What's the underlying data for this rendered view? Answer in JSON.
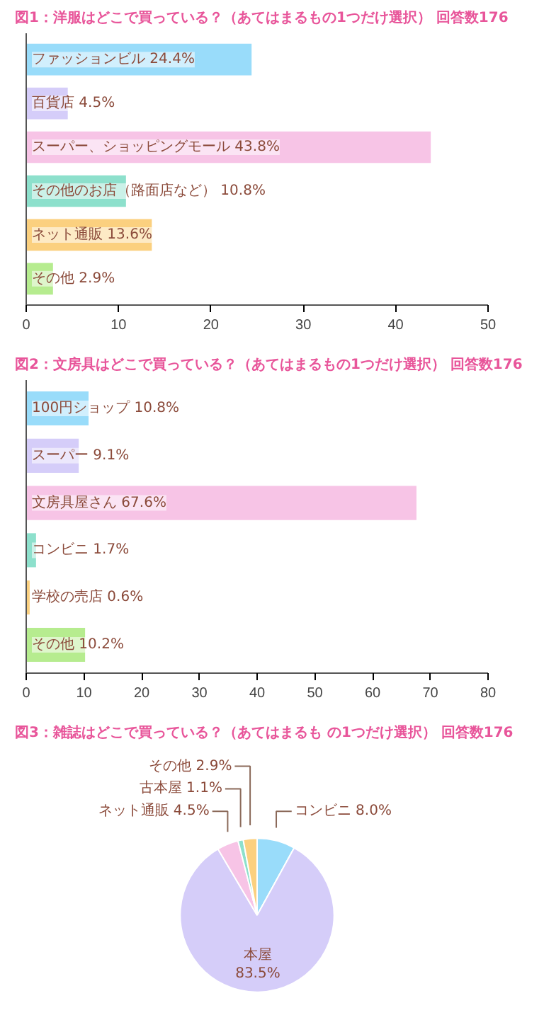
{
  "chart_data": [
    {
      "type": "bar",
      "orientation": "horizontal",
      "title": "図1：洋服はどこで買っている？（あてはまるもの1つだけ選択） 回答数176",
      "categories": [
        "ファッションビル",
        "百貨店",
        "スーパー、ショッピングモール",
        "その他のお店（路面店など）",
        "ネット通販",
        "その他"
      ],
      "values": [
        24.4,
        4.5,
        43.8,
        10.8,
        13.6,
        2.9
      ],
      "value_labels": [
        "24.4%",
        "4.5%",
        "43.8%",
        "10.8%",
        "13.6%",
        "2.9%"
      ],
      "colors": [
        "#99dcfa",
        "#d5cdf9",
        "#f7c4e6",
        "#8de0cc",
        "#fbd07f",
        "#b6ec8f"
      ],
      "xlim": [
        0,
        50
      ],
      "xticks": [
        0,
        10,
        20,
        30,
        40,
        50
      ],
      "grid": false
    },
    {
      "type": "bar",
      "orientation": "horizontal",
      "title": "図2：文房具はどこで買っている？（あてはまるもの1つだけ選択） 回答数176",
      "categories": [
        "100円ショップ",
        "スーパー",
        "文房具屋さん",
        "コンビニ",
        "学校の売店",
        "その他"
      ],
      "values": [
        10.8,
        9.1,
        67.6,
        1.7,
        0.6,
        10.2
      ],
      "value_labels": [
        "10.8%",
        "9.1%",
        "67.6%",
        "1.7%",
        "0.6%",
        "10.2%"
      ],
      "colors": [
        "#99dcfa",
        "#d5cdf9",
        "#f7c4e6",
        "#8de0cc",
        "#fbd07f",
        "#b6ec8f"
      ],
      "xlim": [
        0,
        80
      ],
      "xticks": [
        0,
        10,
        20,
        30,
        40,
        50,
        60,
        70,
        80
      ],
      "grid": false
    },
    {
      "type": "pie",
      "title": "図3：雑誌はどこで買っている？（あてはまるも の1つだけ選択） 回答数176",
      "categories": [
        "コンビニ",
        "本屋",
        "ネット通販",
        "古本屋",
        "その他"
      ],
      "values": [
        8.0,
        83.5,
        4.5,
        1.1,
        2.9
      ],
      "value_labels": [
        "8.0%",
        "83.5%",
        "4.5%",
        "1.1%",
        "2.9%"
      ],
      "colors": [
        "#99dcfa",
        "#d5cdf9",
        "#f7c4e6",
        "#8de0cc",
        "#fbd07f"
      ]
    }
  ]
}
